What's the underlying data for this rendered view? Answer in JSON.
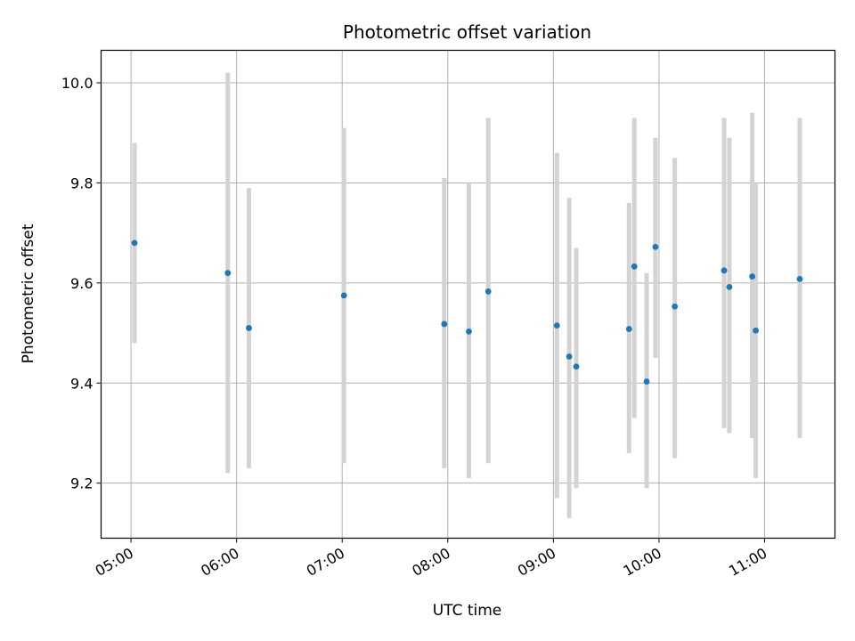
{
  "chart_data": {
    "type": "scatter",
    "title": "Photometric offset variation",
    "xlabel": "UTC time",
    "ylabel": "Photometric offset",
    "xlim": [
      "04:43",
      "11:40"
    ],
    "ylim": [
      9.09,
      10.065
    ],
    "grid": true,
    "x_ticks": [
      "05:00",
      "06:00",
      "07:00",
      "08:00",
      "09:00",
      "10:00",
      "11:00"
    ],
    "y_ticks": [
      9.2,
      9.4,
      9.6,
      9.8,
      10.0
    ],
    "y_tick_labels": [
      "9.2",
      "9.4",
      "9.6",
      "9.8",
      "10.0"
    ],
    "point_color": "#1f77b4",
    "errorbar_color": "#d3d3d3",
    "points": [
      {
        "time": "05:02",
        "y": 9.68,
        "lo": 9.48,
        "hi": 9.88
      },
      {
        "time": "05:55",
        "y": 9.62,
        "lo": 9.22,
        "hi": 10.02
      },
      {
        "time": "06:07",
        "y": 9.51,
        "lo": 9.23,
        "hi": 9.79
      },
      {
        "time": "07:01",
        "y": 9.575,
        "lo": 9.24,
        "hi": 9.91
      },
      {
        "time": "07:58",
        "y": 9.518,
        "lo": 9.23,
        "hi": 9.81
      },
      {
        "time": "08:12",
        "y": 9.503,
        "lo": 9.21,
        "hi": 9.8
      },
      {
        "time": "08:23",
        "y": 9.583,
        "lo": 9.24,
        "hi": 9.93
      },
      {
        "time": "09:02",
        "y": 9.515,
        "lo": 9.17,
        "hi": 9.86
      },
      {
        "time": "09:09",
        "y": 9.453,
        "lo": 9.13,
        "hi": 9.77
      },
      {
        "time": "09:13",
        "y": 9.433,
        "lo": 9.19,
        "hi": 9.67
      },
      {
        "time": "09:43",
        "y": 9.508,
        "lo": 9.26,
        "hi": 9.76
      },
      {
        "time": "09:46",
        "y": 9.633,
        "lo": 9.33,
        "hi": 9.93
      },
      {
        "time": "09:53",
        "y": 9.403,
        "lo": 9.19,
        "hi": 9.62
      },
      {
        "time": "09:58",
        "y": 9.672,
        "lo": 9.45,
        "hi": 9.89
      },
      {
        "time": "10:09",
        "y": 9.553,
        "lo": 9.25,
        "hi": 9.85
      },
      {
        "time": "10:37",
        "y": 9.625,
        "lo": 9.31,
        "hi": 9.93
      },
      {
        "time": "10:40",
        "y": 9.592,
        "lo": 9.3,
        "hi": 9.89
      },
      {
        "time": "10:53",
        "y": 9.613,
        "lo": 9.29,
        "hi": 9.94
      },
      {
        "time": "10:55",
        "y": 9.505,
        "lo": 9.21,
        "hi": 9.8
      },
      {
        "time": "11:20",
        "y": 9.608,
        "lo": 9.29,
        "hi": 9.93
      }
    ]
  }
}
